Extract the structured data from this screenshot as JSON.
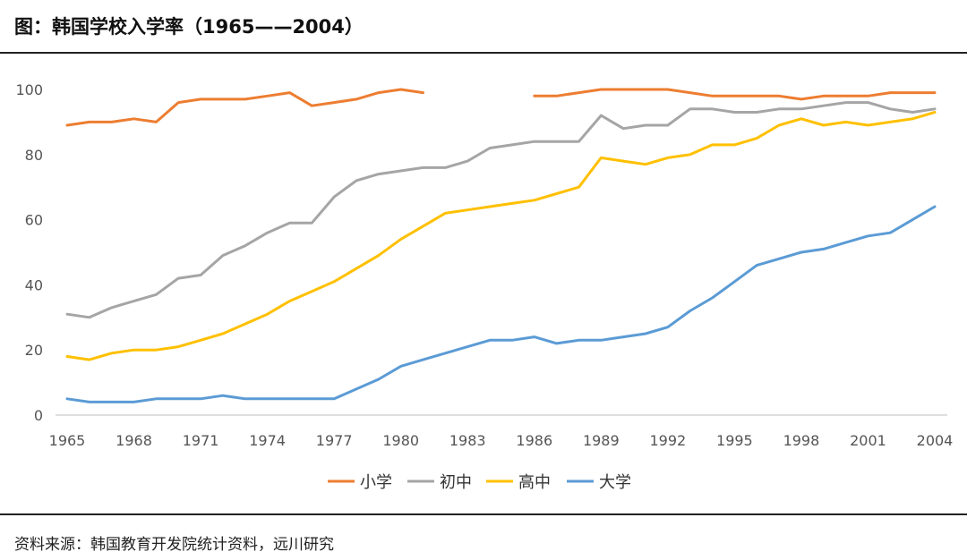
{
  "header": {
    "title": "图：韩国学校入学率（1965——2004）"
  },
  "footer": {
    "source": "资料来源：韩国教育开发院统计资料，远川研究"
  },
  "chart_data": {
    "type": "line",
    "title": "",
    "xlabel": "",
    "ylabel": "",
    "ylim": [
      0,
      100
    ],
    "yticks": [
      0,
      20,
      40,
      60,
      80,
      100
    ],
    "xticks": [
      1965,
      1968,
      1971,
      1974,
      1977,
      1980,
      1983,
      1986,
      1989,
      1992,
      1995,
      1998,
      2001,
      2004
    ],
    "grid": false,
    "legend": "bottom",
    "x": [
      1965,
      1966,
      1967,
      1968,
      1969,
      1970,
      1971,
      1972,
      1973,
      1974,
      1975,
      1976,
      1977,
      1978,
      1979,
      1980,
      1981,
      1982,
      1983,
      1984,
      1985,
      1986,
      1987,
      1988,
      1989,
      1990,
      1991,
      1992,
      1993,
      1994,
      1995,
      1996,
      1997,
      1998,
      1999,
      2000,
      2001,
      2002,
      2003,
      2004
    ],
    "series": [
      {
        "name": "小学",
        "color": "#ED7D31",
        "values": [
          89,
          90,
          90,
          91,
          90,
          96,
          97,
          97,
          97,
          98,
          99,
          95,
          96,
          97,
          99,
          100,
          99,
          null,
          null,
          null,
          null,
          98,
          98,
          99,
          100,
          100,
          100,
          100,
          99,
          98,
          98,
          98,
          98,
          97,
          98,
          98,
          98,
          99,
          99,
          99
        ]
      },
      {
        "name": "初中",
        "color": "#A5A5A5",
        "values": [
          31,
          30,
          33,
          35,
          37,
          42,
          43,
          49,
          52,
          56,
          59,
          59,
          67,
          72,
          74,
          75,
          76,
          76,
          78,
          82,
          83,
          84,
          84,
          84,
          92,
          88,
          89,
          89,
          94,
          94,
          93,
          93,
          94,
          94,
          95,
          96,
          96,
          94,
          93,
          94
        ]
      },
      {
        "name": "高中",
        "color": "#FFC000",
        "values": [
          18,
          17,
          19,
          20,
          20,
          21,
          23,
          25,
          28,
          31,
          35,
          38,
          41,
          45,
          49,
          54,
          58,
          62,
          63,
          64,
          65,
          66,
          68,
          70,
          79,
          78,
          77,
          79,
          80,
          83,
          83,
          85,
          89,
          91,
          89,
          90,
          89,
          90,
          91,
          93
        ]
      },
      {
        "name": "大学",
        "color": "#5B9BD5",
        "values": [
          5,
          4,
          4,
          4,
          5,
          5,
          5,
          6,
          5,
          5,
          5,
          5,
          5,
          8,
          11,
          15,
          17,
          19,
          21,
          23,
          23,
          24,
          22,
          23,
          23,
          24,
          25,
          27,
          32,
          36,
          41,
          46,
          48,
          50,
          51,
          53,
          55,
          56,
          60,
          64
        ]
      }
    ]
  }
}
